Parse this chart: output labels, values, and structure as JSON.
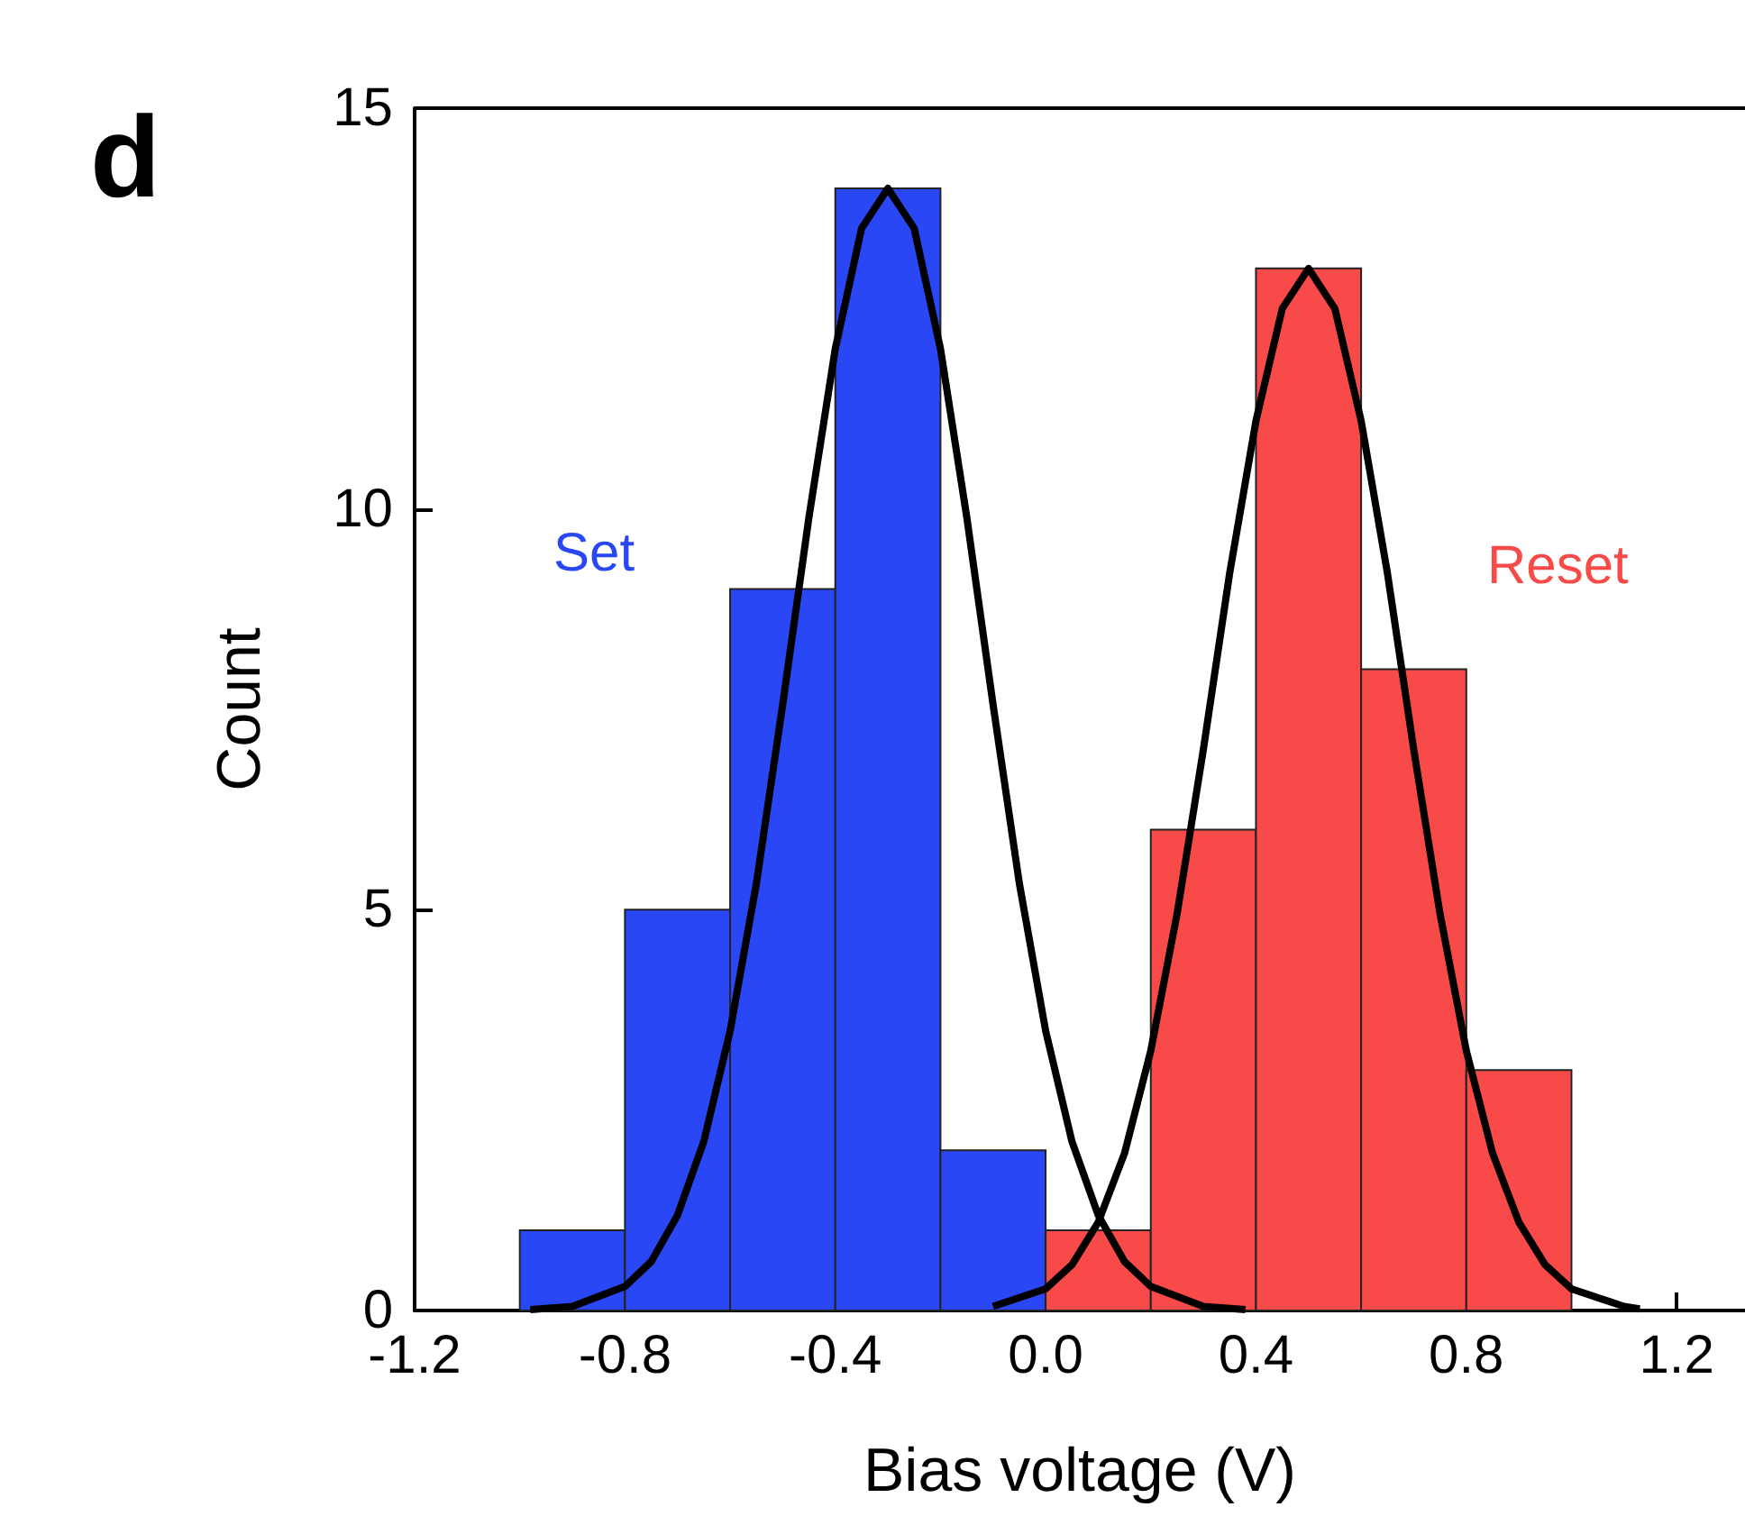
{
  "chart_data": {
    "type": "histogram",
    "xlabel": "Bias voltage (V)",
    "ylabel": "Count",
    "xlim": [
      -1.2,
      1.33
    ],
    "xticks": [
      -1.2,
      -0.8,
      -0.4,
      {
        "value": 0,
        "label": "0.0"
      },
      0.4,
      0.8,
      1.2
    ],
    "ylim": [
      0,
      15
    ],
    "yticks": [
      0,
      5,
      10,
      15
    ],
    "annotations": [
      "d",
      "Set",
      "Reset"
    ],
    "series": [
      {
        "color": "#2a47f5",
        "bins": [
          -1.0,
          -0.8,
          -0.6,
          -0.4,
          -0.2,
          0.0
        ],
        "values": [
          1,
          5,
          9,
          14,
          2
        ]
      },
      {
        "color": "#f94a4a",
        "bins": [
          0.0,
          0.2,
          0.4,
          0.6,
          0.8,
          1.0
        ],
        "values": [
          1,
          6,
          13,
          8,
          3
        ]
      },
      {
        "type": "line",
        "color": "#000000",
        "x": [
          -0.98,
          -0.9,
          -0.8,
          -0.75,
          -0.7,
          -0.65,
          -0.6,
          -0.55,
          -0.5,
          -0.45,
          -0.4,
          -0.35,
          -0.3,
          -0.25,
          -0.2,
          -0.15,
          -0.1,
          -0.05,
          0.0,
          0.05,
          0.1,
          0.15,
          0.2,
          0.3,
          0.38
        ],
        "values": [
          0.01,
          0.05,
          0.3,
          0.61,
          1.19,
          2.11,
          3.49,
          5.33,
          7.56,
          9.9,
          12.0,
          13.5,
          14,
          13.5,
          12.0,
          9.9,
          7.56,
          5.33,
          3.49,
          2.11,
          1.19,
          0.61,
          0.3,
          0.05,
          0.01
        ]
      },
      {
        "type": "line",
        "color": "#000000",
        "x": [
          -0.1,
          0.0,
          0.05,
          0.1,
          0.15,
          0.2,
          0.25,
          0.3,
          0.35,
          0.4,
          0.45,
          0.5,
          0.55,
          0.6,
          0.65,
          0.7,
          0.75,
          0.8,
          0.85,
          0.9,
          0.95,
          1.0,
          1.1,
          1.13
        ],
        "values": [
          0.05,
          0.27,
          0.57,
          1.1,
          1.96,
          3.24,
          4.95,
          7.0,
          9.2,
          11.1,
          12.5,
          13,
          12.5,
          11.1,
          9.2,
          7.0,
          4.95,
          3.24,
          1.96,
          1.1,
          0.57,
          0.27,
          0.05,
          0.02
        ]
      }
    ]
  }
}
